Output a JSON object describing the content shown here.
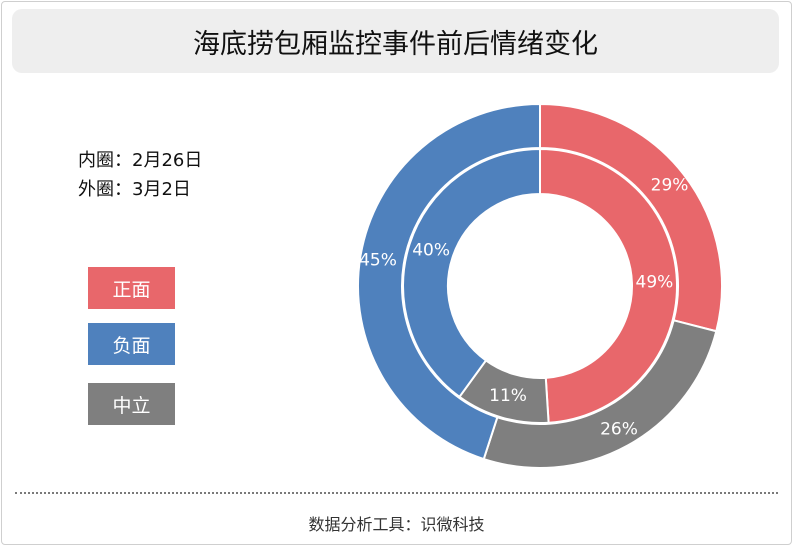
{
  "header": {
    "title": "海底捞包厢监控事件前后情绪变化"
  },
  "ring_info": {
    "inner": "内圈：2月26日",
    "outer": "外圈：3月2日"
  },
  "legend": [
    {
      "label": "正面",
      "color": "#e8676b"
    },
    {
      "label": "负面",
      "color": "#4f81bd"
    },
    {
      "label": "中立",
      "color": "#7f7f7f"
    }
  ],
  "footer": {
    "source": "数据分析工具：识微科技"
  },
  "chart_data": {
    "type": "pie",
    "subtype": "nested-donut",
    "categories": [
      "正面",
      "中立",
      "负面"
    ],
    "colors": [
      "#e8676b",
      "#7f7f7f",
      "#4f81bd"
    ],
    "series": [
      {
        "name": "内圈：2月26日",
        "ring": "inner",
        "values": [
          49,
          11,
          40
        ],
        "labels": [
          "49%",
          "11%",
          "40%"
        ]
      },
      {
        "name": "外圈：3月2日",
        "ring": "outer",
        "values": [
          29,
          26,
          45
        ],
        "labels": [
          "29%",
          "26%",
          "45%"
        ]
      }
    ]
  }
}
